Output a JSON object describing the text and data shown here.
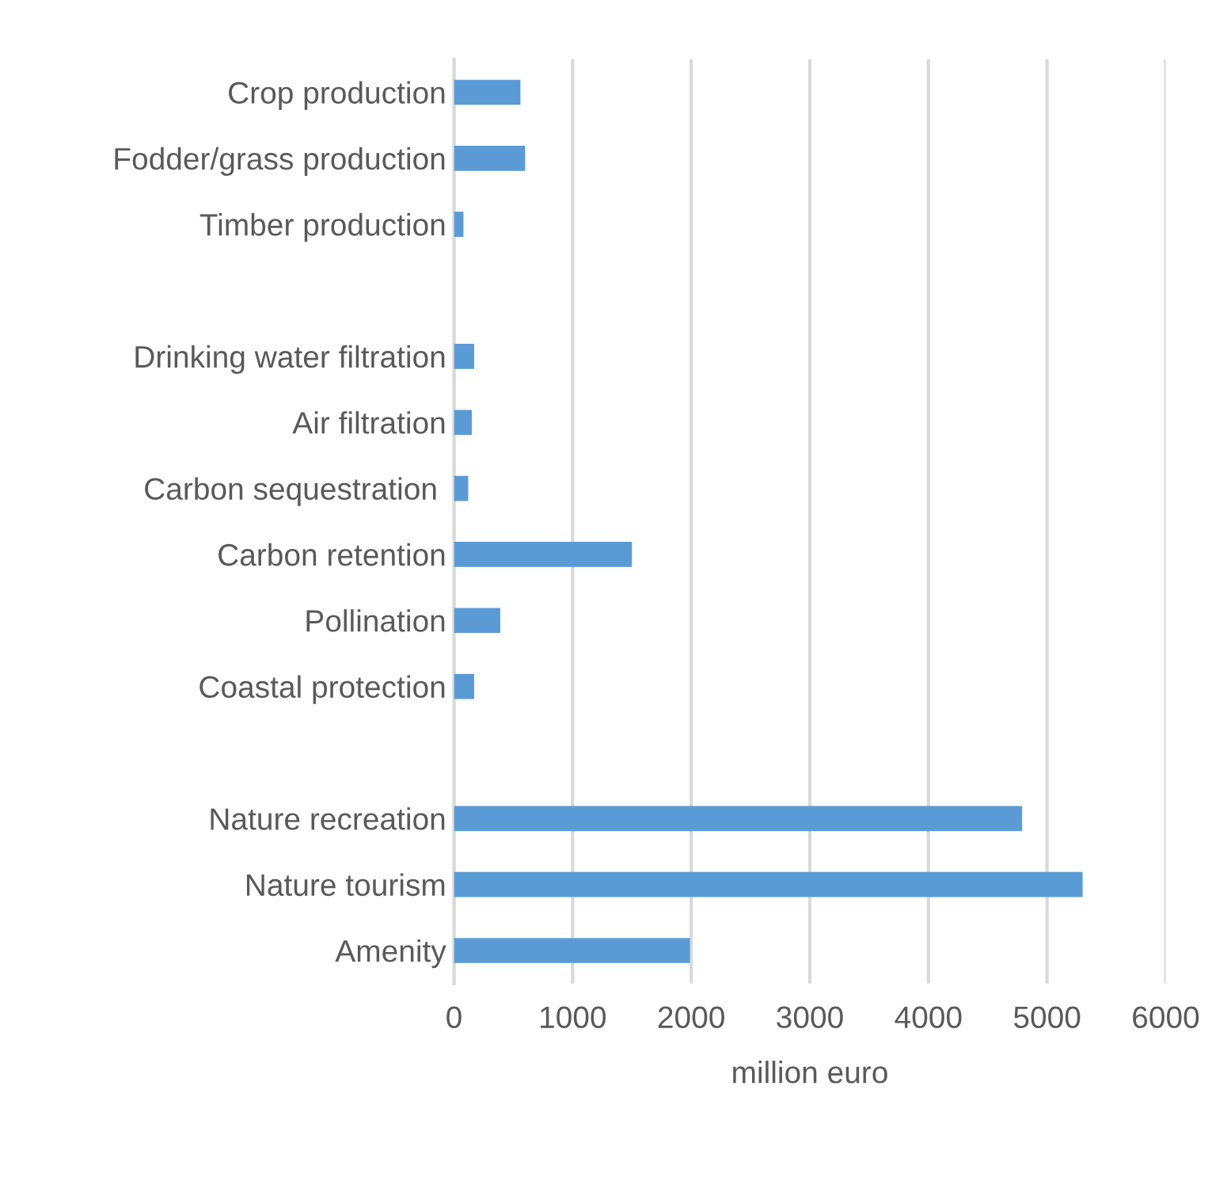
{
  "chart_data": {
    "type": "bar",
    "orientation": "horizontal",
    "xlabel": "million euro",
    "categories": [
      "Crop production",
      "Fodder/grass production",
      "Timber production",
      null,
      "Drinking water filtration",
      "Air filtration",
      "Carbon sequestration ",
      "Carbon retention",
      "Pollination",
      "Coastal protection",
      null,
      "Nature recreation",
      "Nature tourism",
      "Amenity"
    ],
    "values": [
      560,
      600,
      80,
      null,
      170,
      150,
      120,
      1500,
      390,
      170,
      null,
      4790,
      5300,
      1990
    ],
    "color": "#5b9bd5",
    "xlim": [
      0,
      6000
    ],
    "xticks": [
      0,
      1000,
      2000,
      3000,
      4000,
      5000,
      6000
    ],
    "grid": "x"
  }
}
